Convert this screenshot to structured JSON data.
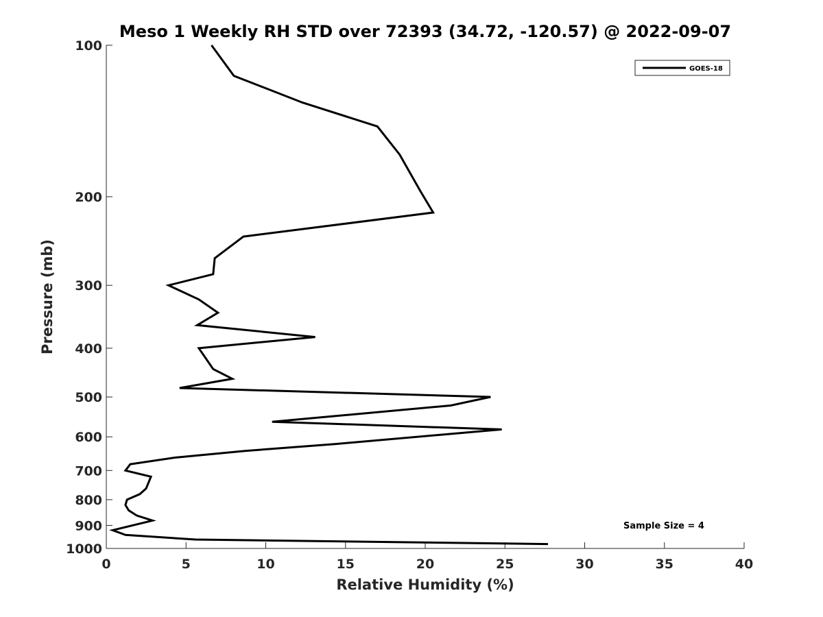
{
  "chart_data": {
    "type": "line",
    "title": "Meso 1 Weekly RH STD over 72393 (34.72, -120.57) @ 2022-09-07",
    "xlabel": "Relative Humidity (%)",
    "ylabel": "Pressure (mb)",
    "xlim": [
      0,
      40
    ],
    "ylim": [
      100,
      1000
    ],
    "y_scale": "log",
    "y_reversed": true,
    "x_ticks": [
      0,
      5,
      10,
      15,
      20,
      25,
      30,
      35,
      40
    ],
    "y_ticks": [
      100,
      200,
      300,
      400,
      500,
      600,
      700,
      800,
      900,
      1000
    ],
    "grid": false,
    "legend_position": "top-right",
    "annotation": "Sample Size = 4",
    "series": [
      {
        "name": "GOES-18",
        "color": "#000000",
        "points": [
          {
            "x": 6.6,
            "p": 100
          },
          {
            "x": 8.0,
            "p": 115
          },
          {
            "x": 12.3,
            "p": 130
          },
          {
            "x": 17.0,
            "p": 145
          },
          {
            "x": 18.4,
            "p": 165
          },
          {
            "x": 19.7,
            "p": 195
          },
          {
            "x": 20.5,
            "p": 215
          },
          {
            "x": 8.6,
            "p": 240
          },
          {
            "x": 6.8,
            "p": 265
          },
          {
            "x": 6.7,
            "p": 285
          },
          {
            "x": 3.9,
            "p": 300
          },
          {
            "x": 5.8,
            "p": 320
          },
          {
            "x": 7.0,
            "p": 340
          },
          {
            "x": 5.7,
            "p": 360
          },
          {
            "x": 13.1,
            "p": 380
          },
          {
            "x": 5.8,
            "p": 400
          },
          {
            "x": 6.7,
            "p": 440
          },
          {
            "x": 7.9,
            "p": 460
          },
          {
            "x": 4.6,
            "p": 480
          },
          {
            "x": 24.1,
            "p": 500
          },
          {
            "x": 21.6,
            "p": 520
          },
          {
            "x": 10.4,
            "p": 560
          },
          {
            "x": 24.8,
            "p": 580
          },
          {
            "x": 14.4,
            "p": 620
          },
          {
            "x": 8.7,
            "p": 640
          },
          {
            "x": 4.3,
            "p": 660
          },
          {
            "x": 1.5,
            "p": 680
          },
          {
            "x": 1.2,
            "p": 700
          },
          {
            "x": 2.8,
            "p": 720
          },
          {
            "x": 2.5,
            "p": 760
          },
          {
            "x": 2.1,
            "p": 780
          },
          {
            "x": 1.3,
            "p": 800
          },
          {
            "x": 1.2,
            "p": 820
          },
          {
            "x": 1.4,
            "p": 840
          },
          {
            "x": 1.9,
            "p": 860
          },
          {
            "x": 2.9,
            "p": 880
          },
          {
            "x": 0.4,
            "p": 920
          },
          {
            "x": 1.2,
            "p": 940
          },
          {
            "x": 5.6,
            "p": 960
          },
          {
            "x": 27.7,
            "p": 980
          }
        ]
      }
    ]
  }
}
